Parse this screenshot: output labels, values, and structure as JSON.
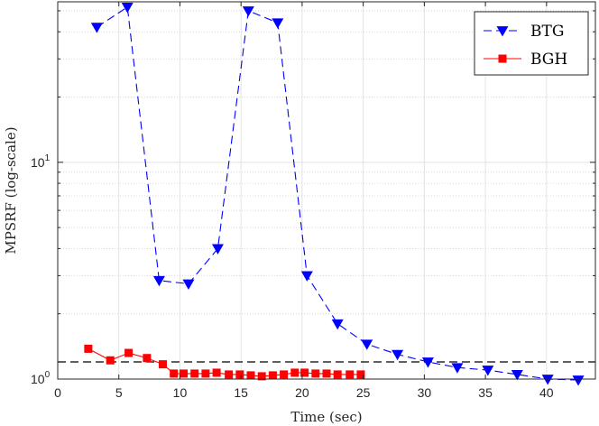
{
  "chart_data": {
    "type": "line",
    "xlabel": "Time (sec)",
    "ylabel": "MPSRF (log-scale)",
    "yscale": "log",
    "xlim": [
      0,
      44
    ],
    "ylim": [
      1,
      55
    ],
    "x_ticks": [
      "0",
      "5",
      "10",
      "15",
      "20",
      "25",
      "30",
      "35",
      "40"
    ],
    "x_tick_values": [
      0,
      5,
      10,
      15,
      20,
      25,
      30,
      35,
      40
    ],
    "y_ticks": [
      {
        "value": 1,
        "base": "10",
        "exp": "0"
      },
      {
        "value": 10,
        "base": "10",
        "exp": "1"
      }
    ],
    "grid": true,
    "legend_position": "top-right",
    "reference_line": {
      "y": 1.2,
      "style": "dashed",
      "color": "#000000"
    },
    "series": [
      {
        "name": "BTG",
        "color": "#0000ff",
        "line_style": "dashed",
        "marker": "triangle-down",
        "x": [
          3.2,
          5.7,
          8.3,
          10.7,
          13.1,
          15.6,
          18.0,
          20.4,
          22.9,
          25.3,
          27.8,
          30.3,
          32.7,
          35.2,
          37.6,
          40.1,
          42.6
        ],
        "y": [
          42,
          52,
          2.85,
          2.75,
          4.0,
          50,
          44,
          3.0,
          1.8,
          1.45,
          1.3,
          1.2,
          1.13,
          1.1,
          1.05,
          1.0,
          0.99
        ]
      },
      {
        "name": "BGH",
        "color": "#ff0000",
        "line_style": "solid",
        "marker": "square",
        "x": [
          2.5,
          4.3,
          5.8,
          7.3,
          8.6,
          9.5,
          10.3,
          11.2,
          12.1,
          13.0,
          14.0,
          14.9,
          15.8,
          16.7,
          17.6,
          18.5,
          19.4,
          20.2,
          21.1,
          22.0,
          22.9,
          23.9,
          24.8
        ],
        "y": [
          1.38,
          1.22,
          1.32,
          1.25,
          1.17,
          1.06,
          1.06,
          1.06,
          1.06,
          1.07,
          1.05,
          1.05,
          1.04,
          1.03,
          1.04,
          1.05,
          1.07,
          1.07,
          1.06,
          1.06,
          1.05,
          1.05,
          1.05
        ]
      }
    ]
  }
}
